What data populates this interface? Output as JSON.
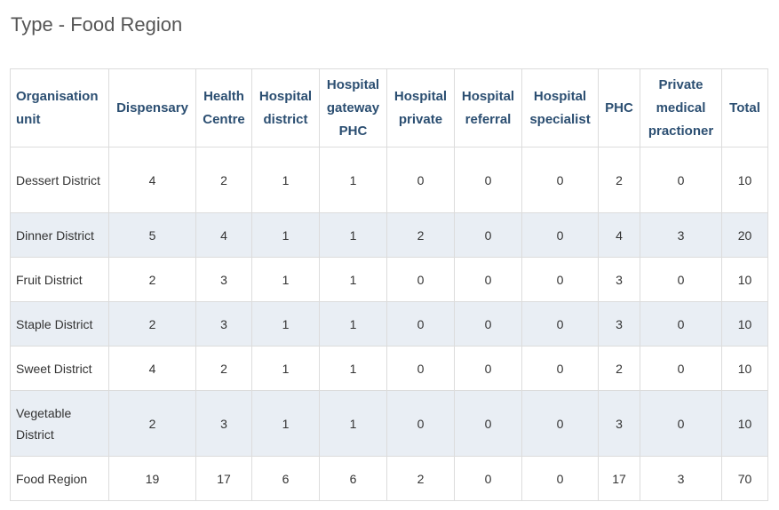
{
  "title": "Type - Food Region",
  "table": {
    "headers": [
      "Organisation unit",
      "Dispensary",
      "Health Centre",
      "Hospital district",
      "Hospital gateway PHC",
      "Hospital private",
      "Hospital referral",
      "Hospital specialist",
      "PHC",
      "Private medical practioner",
      "Total"
    ],
    "rows": [
      [
        "Dessert District",
        "4",
        "2",
        "1",
        "1",
        "0",
        "0",
        "0",
        "2",
        "0",
        "10"
      ],
      [
        "Dinner District",
        "5",
        "4",
        "1",
        "1",
        "2",
        "0",
        "0",
        "4",
        "3",
        "20"
      ],
      [
        "Fruit District",
        "2",
        "3",
        "1",
        "1",
        "0",
        "0",
        "0",
        "3",
        "0",
        "10"
      ],
      [
        "Staple District",
        "2",
        "3",
        "1",
        "1",
        "0",
        "0",
        "0",
        "3",
        "0",
        "10"
      ],
      [
        "Sweet District",
        "4",
        "2",
        "1",
        "1",
        "0",
        "0",
        "0",
        "2",
        "0",
        "10"
      ],
      [
        "Vegetable District",
        "2",
        "3",
        "1",
        "1",
        "0",
        "0",
        "0",
        "3",
        "0",
        "10"
      ],
      [
        "Food Region",
        "19",
        "17",
        "6",
        "6",
        "2",
        "0",
        "0",
        "17",
        "3",
        "70"
      ]
    ],
    "colors": {
      "header_text": "#2c4f72",
      "alt_row_bg": "#e9eef4",
      "border": "#dcdcdc"
    }
  }
}
